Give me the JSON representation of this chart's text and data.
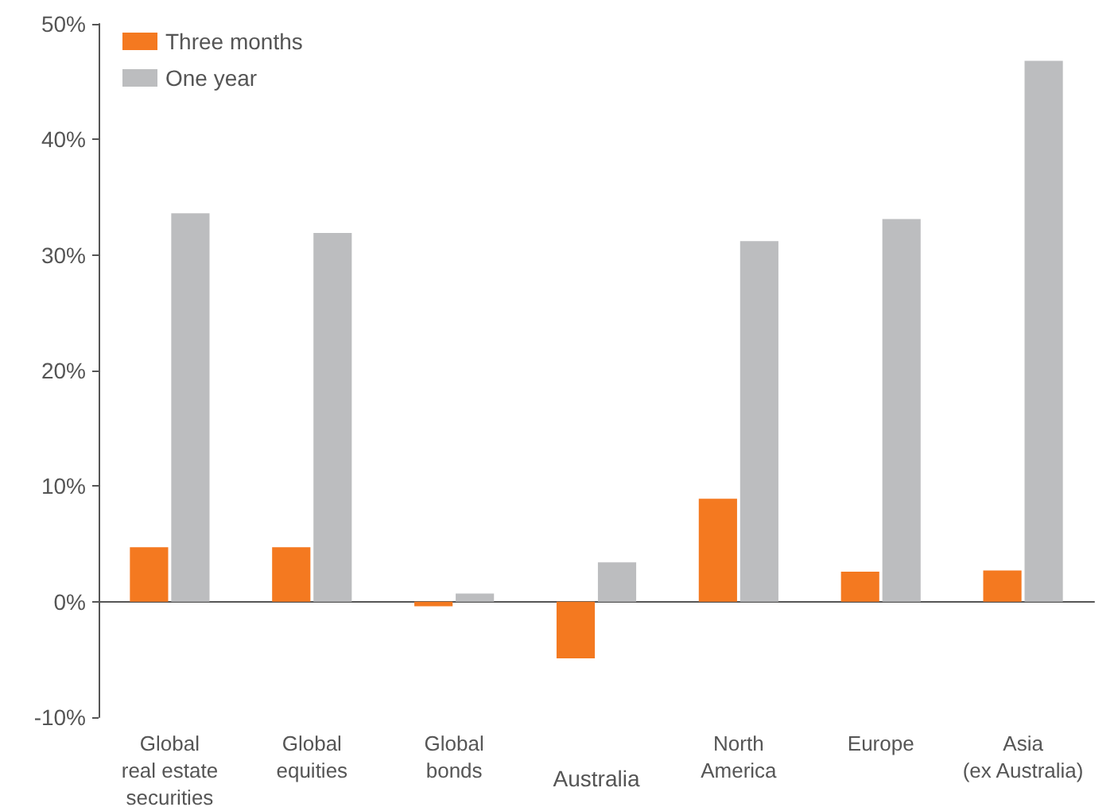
{
  "chart_data": {
    "type": "bar",
    "categories": [
      "Global\nreal estate\nsecurities",
      "Global\nequities",
      "Global\nbonds",
      "Australia",
      "North\nAmerica",
      "Europe",
      "Asia\n(ex Australia)"
    ],
    "series": [
      {
        "name": "Three months",
        "color": "#f47920",
        "values": [
          4.7,
          4.7,
          -0.4,
          -4.9,
          8.9,
          2.6,
          2.7
        ]
      },
      {
        "name": "One year",
        "color": "#bcbdbf",
        "values": [
          33.6,
          31.9,
          0.7,
          3.4,
          31.2,
          33.1,
          46.8
        ]
      }
    ],
    "ylim": [
      -10,
      50
    ],
    "yticks": [
      {
        "value": -10,
        "label": "-10%"
      },
      {
        "value": 0,
        "label": "0%"
      },
      {
        "value": 10,
        "label": "10%"
      },
      {
        "value": 20,
        "label": "20%"
      },
      {
        "value": 30,
        "label": "30%"
      },
      {
        "value": 40,
        "label": "40%"
      },
      {
        "value": 50,
        "label": "50%"
      }
    ],
    "legend": "top left"
  }
}
